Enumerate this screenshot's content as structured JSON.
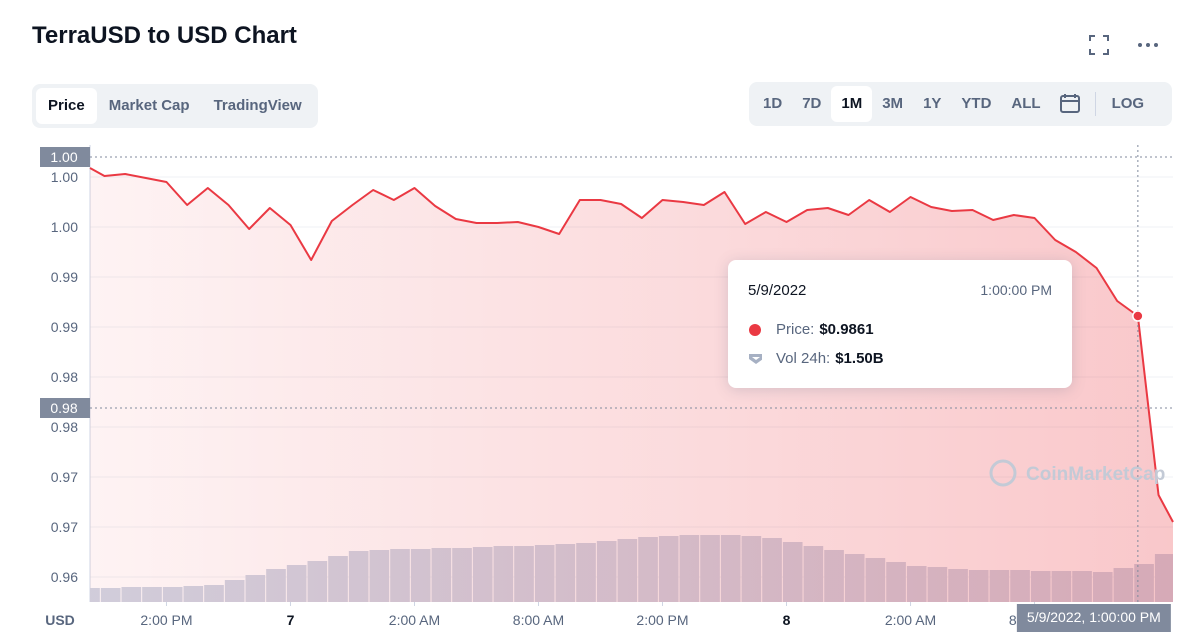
{
  "header": {
    "title": "TerraUSD to USD Chart",
    "tabs": [
      "Price",
      "Market Cap",
      "TradingView"
    ],
    "active_tab": 0,
    "ranges": [
      "1D",
      "7D",
      "1M",
      "3M",
      "1Y",
      "YTD",
      "ALL"
    ],
    "active_range": 2,
    "log": "LOG"
  },
  "tooltip": {
    "date": "5/9/2022",
    "time": "1:00:00 PM",
    "rows": [
      {
        "label": "Price:",
        "value": "$0.9861"
      },
      {
        "label": "Vol 24h:",
        "value": "$1.50B"
      }
    ]
  },
  "chart_data": {
    "type": "line",
    "color": "#ea3943",
    "ylabel": "USD",
    "watermark": "CoinMarketCap",
    "grid": true,
    "x": [
      0,
      0.7,
      1.7,
      2.7,
      3.7,
      4.7,
      5.7,
      6.7,
      7.7,
      8.7,
      9.7,
      10.7,
      11.7,
      12.7,
      13.7,
      14.7,
      15.7,
      16.7,
      17.7,
      18.7,
      19.7,
      20.7,
      21.7,
      22.7,
      23.7,
      24.7,
      25.7,
      26.7,
      27.7,
      28.7,
      29.7,
      30.7,
      31.7,
      32.7,
      33.7,
      34.7,
      35.7,
      36.7,
      37.7,
      38.7,
      39.7,
      40.7,
      41.7,
      42.7,
      43.7,
      44.7,
      45.7,
      46.7,
      47.7,
      48.7,
      49.7,
      50.7,
      51.7,
      52.4
    ],
    "values": [
      1.0009,
      1.0001,
      1.0003,
      0.9999,
      0.9995,
      0.9972,
      0.9989,
      0.9972,
      0.9948,
      0.9969,
      0.9952,
      0.9917,
      0.9956,
      0.9972,
      0.9987,
      0.9977,
      0.9989,
      0.9971,
      0.9958,
      0.9954,
      0.9954,
      0.9955,
      0.995,
      0.9943,
      0.9977,
      0.9977,
      0.9973,
      0.9959,
      0.9977,
      0.9975,
      0.9972,
      0.9985,
      0.9953,
      0.9965,
      0.9955,
      0.9967,
      0.9969,
      0.9962,
      0.9977,
      0.9965,
      0.998,
      0.997,
      0.9966,
      0.9967,
      0.9957,
      0.9962,
      0.9959,
      0.9937,
      0.9925,
      0.9909,
      0.9876,
      0.9861,
      0.9682,
      0.9655
    ],
    "xlim": [
      0,
      52.4
    ],
    "xticks": [
      {
        "value": 3.7,
        "label": "2:00 PM"
      },
      {
        "value": 9.7,
        "label": "7"
      },
      {
        "value": 15.7,
        "label": "2:00 AM"
      },
      {
        "value": 21.7,
        "label": "8:00 AM"
      },
      {
        "value": 27.7,
        "label": "2:00 PM"
      },
      {
        "value": 33.7,
        "label": "8"
      },
      {
        "value": 39.7,
        "label": "2:00 AM"
      },
      {
        "value": 45.7,
        "label": "8:00 AM"
      }
    ],
    "ylim": [
      0.9575,
      1.0032
    ],
    "yticks": [
      {
        "value": 0.96,
        "label": "0.96"
      },
      {
        "value": 0.965,
        "label": "0.97"
      },
      {
        "value": 0.97,
        "label": "0.97"
      },
      {
        "value": 0.975,
        "label": "0.98"
      },
      {
        "value": 0.98,
        "label": "0.98"
      },
      {
        "value": 0.985,
        "label": "0.99"
      },
      {
        "value": 0.99,
        "label": "0.99"
      },
      {
        "value": 0.995,
        "label": "1.00"
      },
      {
        "value": 1,
        "label": "1.00"
      }
    ],
    "reference_lines": [
      {
        "value": 1.002,
        "label": "1.00"
      },
      {
        "value": 0.9769,
        "label": "0.98"
      }
    ],
    "crosshair": {
      "x": 50.7,
      "label": "5/9/2022, 1:00:00 PM",
      "y": 0.9861
    },
    "volume": {
      "color": "#cfd6e4",
      "y2lim": [
        0,
        457
      ],
      "x": [
        0,
        1,
        2,
        3,
        4,
        5,
        6,
        7,
        8,
        9,
        10,
        11,
        12,
        13,
        14,
        15,
        16,
        17,
        18,
        19,
        20,
        21,
        22,
        23,
        24,
        25,
        26,
        27,
        28,
        29,
        30,
        31,
        32,
        33,
        34,
        35,
        36,
        37,
        38,
        39,
        40,
        41,
        42,
        43,
        44,
        45,
        46,
        47,
        48,
        49,
        50,
        51,
        52
      ],
      "values": [
        14,
        14,
        15,
        15,
        15,
        16,
        17,
        22,
        27,
        33,
        37,
        41,
        46,
        51,
        52,
        53,
        53,
        54,
        54,
        55,
        56,
        56,
        57,
        58,
        59,
        61,
        63,
        65,
        66,
        67,
        67,
        67,
        66,
        64,
        60,
        56,
        52,
        48,
        44,
        40,
        36,
        35,
        33,
        32,
        32,
        32,
        31,
        31,
        31,
        30,
        34,
        38,
        48
      ]
    }
  }
}
